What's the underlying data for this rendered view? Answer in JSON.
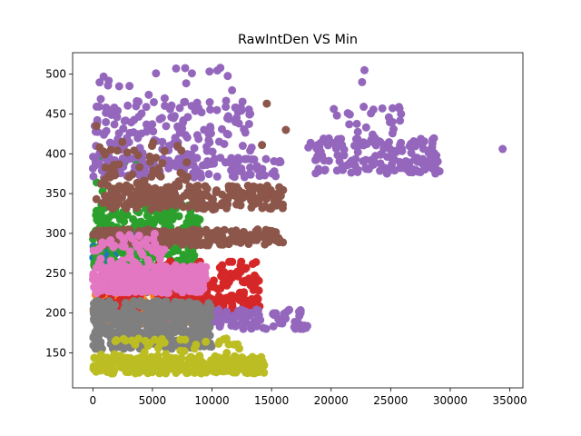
{
  "chart_data": {
    "type": "scatter",
    "title": "RawIntDen VS Min",
    "xlabel": "",
    "ylabel": "",
    "xlim": [
      -1700,
      36100
    ],
    "ylim": [
      106,
      527
    ],
    "x_ticks": [
      0,
      5000,
      10000,
      15000,
      20000,
      25000,
      30000,
      35000
    ],
    "y_ticks": [
      150,
      200,
      250,
      300,
      350,
      400,
      450,
      500
    ],
    "grid": false,
    "legend": "none",
    "marker": "circle",
    "series": [
      {
        "color": "#1f77b4",
        "clusters": [
          {
            "x_range": [
              0,
              4500
            ],
            "y_range": [
              255,
              300
            ],
            "count": 70
          },
          {
            "x_range": [
              200,
              9500
            ],
            "y_range": [
              215,
              245
            ],
            "count": 80
          }
        ]
      },
      {
        "color": "#ff7f0e",
        "clusters": [
          {
            "x_range": [
              0,
              9000
            ],
            "y_range": [
              185,
              230
            ],
            "count": 110
          }
        ]
      },
      {
        "color": "#2ca02c",
        "clusters": [
          {
            "x_range": [
              0,
              9000
            ],
            "y_range": [
              255,
              335
            ],
            "count": 260
          },
          {
            "x_range": [
              300,
              6500
            ],
            "y_range": [
              325,
              400
            ],
            "count": 14
          }
        ]
      },
      {
        "color": "#d62728",
        "clusters": [
          {
            "x_range": [
              300,
              14000
            ],
            "y_range": [
              200,
              250
            ],
            "count": 260
          },
          {
            "x_range": [
              5000,
              14000
            ],
            "y_range": [
              250,
              265
            ],
            "count": 30
          }
        ]
      },
      {
        "color": "#9467bd",
        "clusters": [
          {
            "x_range": [
              0,
              13500
            ],
            "y_range": [
              385,
              470
            ],
            "count": 170
          },
          {
            "x_range": [
              0,
              16000
            ],
            "y_range": [
              370,
              395
            ],
            "count": 120
          },
          {
            "x_range": [
              18000,
              29000
            ],
            "y_range": [
              375,
              420
            ],
            "count": 160
          },
          {
            "x_range": [
              20000,
              26000
            ],
            "y_range": [
              420,
              460
            ],
            "count": 22
          },
          {
            "x_range": [
              5000,
              18000
            ],
            "y_range": [
              180,
              205
            ],
            "count": 140
          },
          {
            "x_range": [
              200,
              12000
            ],
            "y_range": [
              470,
              508
            ],
            "count": 14
          }
        ],
        "points": [
          [
            34400,
            406
          ],
          [
            10700,
            508
          ],
          [
            22800,
            505
          ],
          [
            5300,
            501
          ],
          [
            900,
            497
          ],
          [
            22600,
            490
          ],
          [
            24300,
            457
          ],
          [
            29100,
            378
          ]
        ]
      },
      {
        "color": "#8c564b",
        "clusters": [
          {
            "x_range": [
              0,
              16000
            ],
            "y_range": [
              285,
              305
            ],
            "count": 230
          },
          {
            "x_range": [
              800,
              16000
            ],
            "y_range": [
              330,
              360
            ],
            "count": 230
          },
          {
            "x_range": [
              500,
              8000
            ],
            "y_range": [
              360,
              415
            ],
            "count": 50
          }
        ],
        "points": [
          [
            14600,
            463
          ],
          [
            14200,
            411
          ],
          [
            16200,
            430
          ],
          [
            300,
            435
          ],
          [
            300,
            343
          ]
        ]
      },
      {
        "color": "#e377c2",
        "clusters": [
          {
            "x_range": [
              0,
              9500
            ],
            "y_range": [
              225,
              260
            ],
            "count": 300
          },
          {
            "x_range": [
              0,
              6000
            ],
            "y_range": [
              260,
              300
            ],
            "count": 50
          }
        ]
      },
      {
        "color": "#7f7f7f",
        "clusters": [
          {
            "x_range": [
              0,
              10000
            ],
            "y_range": [
              155,
              215
            ],
            "count": 460
          }
        ]
      },
      {
        "color": "#bcbd22",
        "clusters": [
          {
            "x_range": [
              0,
              14500
            ],
            "y_range": [
              124,
              145
            ],
            "count": 280
          },
          {
            "x_range": [
              500,
              13000
            ],
            "y_range": [
              145,
              168
            ],
            "count": 40
          }
        ]
      }
    ]
  }
}
